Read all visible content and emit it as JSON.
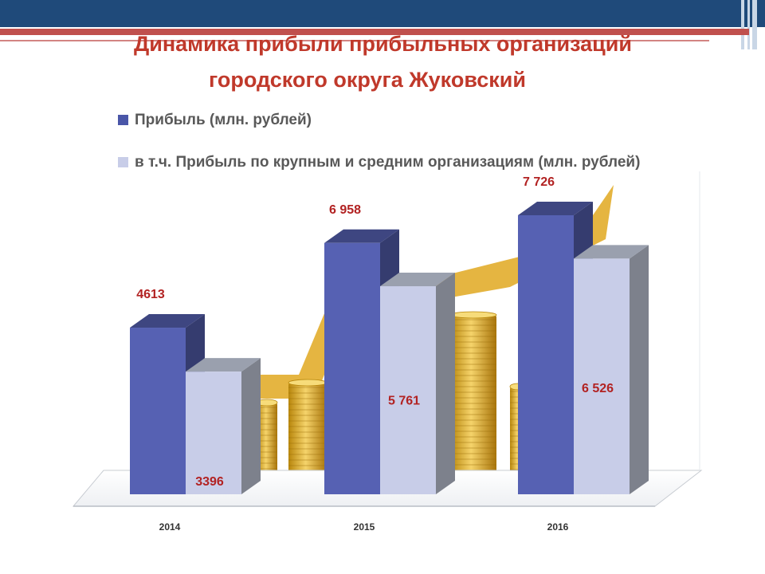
{
  "slide": {
    "title_line1": "Динамика прибыли прибыльных организаций",
    "title_line2": "городского округа Жуковский"
  },
  "colors": {
    "header_blue": "#1f4a7a",
    "accent_red": "#c0504d",
    "title_red": "#c0392b",
    "series1": "#5661b3",
    "series2": "#c8cde8",
    "label_red": "#b22222",
    "arrow_gold": "#e0a820"
  },
  "chart_data": {
    "type": "bar",
    "style": "3d-clustered-column",
    "categories": [
      "2014",
      "2015",
      "2016"
    ],
    "series": [
      {
        "name": "Прибыль (млн. рублей)",
        "values": [
          4613,
          6958,
          7726
        ],
        "labels": [
          "4613",
          "6 958",
          "7 726"
        ]
      },
      {
        "name": "в т.ч. Прибыль по крупным и средним организациям (млн. рублей)",
        "values": [
          3396,
          5761,
          6526
        ],
        "labels": [
          "3396",
          "5 761",
          "6 526"
        ]
      }
    ],
    "legend_position": "top-left",
    "grid": false,
    "ylim": [
      0,
      9000
    ]
  }
}
